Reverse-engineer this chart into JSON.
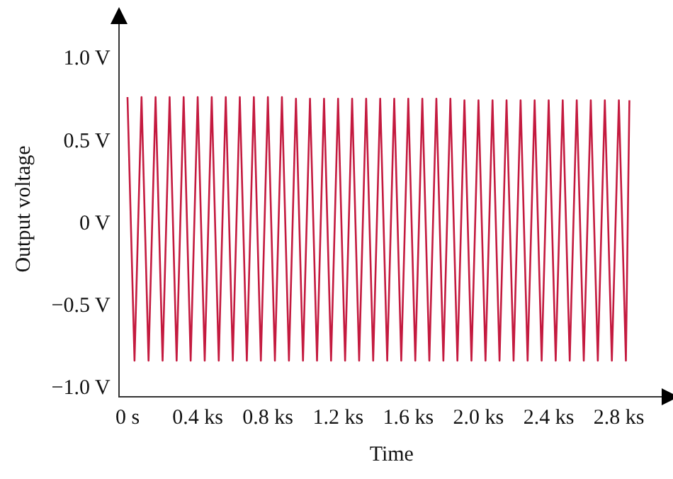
{
  "chart_data": {
    "type": "line",
    "xlabel": "Time",
    "ylabel": "Output voltage",
    "xlim": [
      -0.05,
      3.06
    ],
    "ylim": [
      -1.05,
      1.23
    ],
    "xticks": [
      {
        "value": 0,
        "label": "0 s"
      },
      {
        "value": 0.4,
        "label": "0.4 ks"
      },
      {
        "value": 0.8,
        "label": "0.8 ks"
      },
      {
        "value": 1.2,
        "label": "1.2 ks"
      },
      {
        "value": 1.6,
        "label": "1.6 ks"
      },
      {
        "value": 2.0,
        "label": "2.0 ks"
      },
      {
        "value": 2.4,
        "label": "2.4 ks"
      },
      {
        "value": 2.8,
        "label": "2.8 ks"
      }
    ],
    "yticks": [
      {
        "value": -1,
        "label": "−1.0 V"
      },
      {
        "value": -0.5,
        "label": "−0.5 V"
      },
      {
        "value": 0,
        "label": "0 V"
      },
      {
        "value": 0.5,
        "label": "0.5 V"
      },
      {
        "value": 1,
        "label": "1.0 V"
      }
    ],
    "grid": false,
    "legend": false,
    "marker": "none",
    "line_style": "solid",
    "series": [
      {
        "color": "#c41a3f",
        "x": [
          0,
          0.04,
          0.08,
          0.12,
          0.16,
          0.2,
          0.24,
          0.28,
          0.32,
          0.36,
          0.4,
          0.44,
          0.48,
          0.52,
          0.56,
          0.6,
          0.64,
          0.68,
          0.72,
          0.76,
          0.8,
          0.84,
          0.88,
          0.92,
          0.96,
          1,
          1.04,
          1.08,
          1.12,
          1.16,
          1.2,
          1.24,
          1.28,
          1.32,
          1.36,
          1.4,
          1.44,
          1.48,
          1.52,
          1.56,
          1.6,
          1.64,
          1.68,
          1.72,
          1.76,
          1.8,
          1.84,
          1.88,
          1.92,
          1.96,
          2,
          2.04,
          2.08,
          2.12,
          2.16,
          2.2,
          2.24,
          2.28,
          2.32,
          2.36,
          2.4,
          2.44,
          2.48,
          2.52,
          2.56,
          2.6,
          2.64,
          2.68,
          2.72,
          2.76,
          2.8,
          2.84,
          2.86
        ],
        "values": [
          0.77,
          -0.83,
          0.77,
          -0.83,
          0.77,
          -0.83,
          0.77,
          -0.83,
          0.77,
          -0.83,
          0.77,
          -0.83,
          0.77,
          -0.83,
          0.77,
          -0.83,
          0.77,
          -0.83,
          0.77,
          -0.83,
          0.77,
          -0.83,
          0.77,
          -0.83,
          0.76,
          -0.83,
          0.76,
          -0.83,
          0.76,
          -0.83,
          0.76,
          -0.83,
          0.76,
          -0.83,
          0.76,
          -0.83,
          0.76,
          -0.83,
          0.76,
          -0.83,
          0.76,
          -0.83,
          0.76,
          -0.83,
          0.76,
          -0.83,
          0.76,
          -0.83,
          0.75,
          -0.83,
          0.75,
          -0.83,
          0.75,
          -0.83,
          0.75,
          -0.83,
          0.75,
          -0.83,
          0.75,
          -0.83,
          0.75,
          -0.83,
          0.75,
          -0.83,
          0.75,
          -0.83,
          0.75,
          -0.83,
          0.75,
          -0.83,
          0.75,
          -0.83,
          0.75
        ]
      }
    ]
  }
}
